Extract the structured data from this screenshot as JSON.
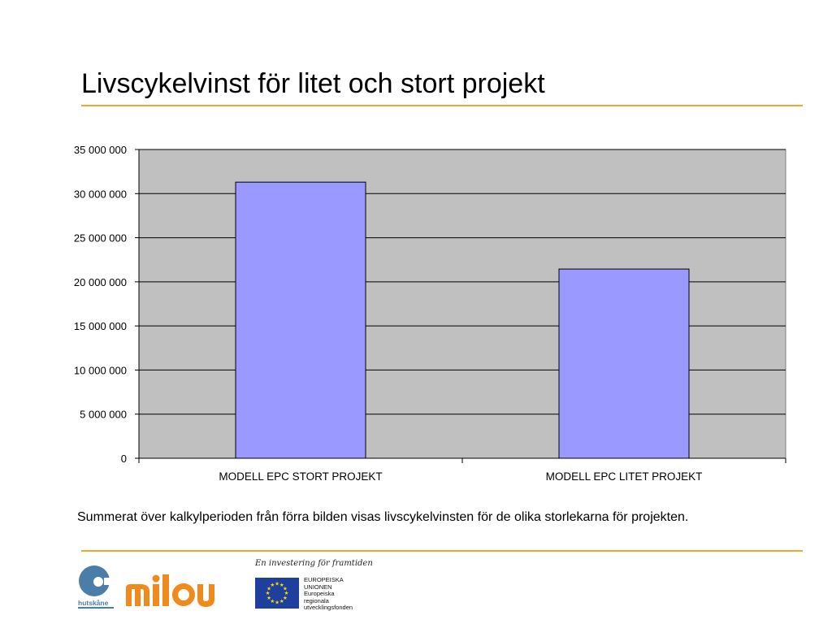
{
  "slide": {
    "title": "Livscykelvinst för litet och stort projekt",
    "summary": "Summerat över kalkylperioden från förra bilden visas livscykelvinsten för de olika storlekarna för projekten."
  },
  "chart_data": {
    "type": "bar",
    "title": "",
    "xlabel": "",
    "ylabel": "",
    "categories": [
      "MODELL EPC STORT PROJEKT",
      "MODELL EPC LITET PROJEKT"
    ],
    "values": [
      31300000,
      21450000
    ],
    "ylim": [
      0,
      35000000
    ],
    "yticks": [
      0,
      5000000,
      10000000,
      15000000,
      20000000,
      25000000,
      30000000,
      35000000
    ],
    "ytick_labels": [
      "0",
      "5 000 000",
      "10 000 000",
      "15 000 000",
      "20 000 000",
      "25 000 000",
      "30 000 000",
      "35 000 000"
    ],
    "grid": true,
    "legend": "none",
    "colors": {
      "bar_fill": "#9999ff",
      "plot_background": "#c0c0c0",
      "gridline": "#000000"
    }
  },
  "footer": {
    "tagline": "En investering för framtiden",
    "eu_label": "EUROPEISKA\nUNIONEN\nEuropeiska\nregionala\nutvecklingsfonden",
    "logos": {
      "left": "hutskane",
      "left_text": "hutskåne",
      "middle": "milou",
      "right": "eu-flag"
    }
  },
  "colors": {
    "accent_rule": "#f2a531",
    "milou_orange": "#f08a1c",
    "hutskane_blue": "#4a7ea8",
    "eu_blue": "#1f3f9e",
    "eu_star": "#ffdd00"
  }
}
